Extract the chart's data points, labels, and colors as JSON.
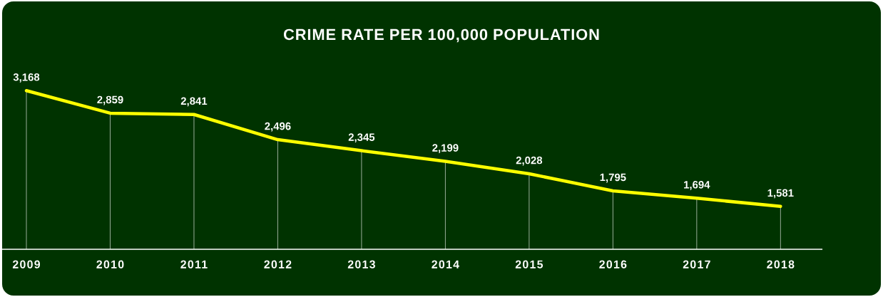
{
  "chart_data": {
    "type": "line",
    "title": "CRIME RATE PER 100,000 POPULATION",
    "categories": [
      "2009",
      "2010",
      "2011",
      "2012",
      "2013",
      "2014",
      "2015",
      "2016",
      "2017",
      "2018"
    ],
    "values": [
      3168,
      2859,
      2841,
      2496,
      2345,
      2199,
      2028,
      1795,
      1694,
      1581
    ],
    "value_labels": [
      "3,168",
      "2,859",
      "2,841",
      "2,496",
      "2,345",
      "2,199",
      "2,028",
      "1,795",
      "1,694",
      "1,581"
    ],
    "color": "#ffff00",
    "marker": "none",
    "line_style": "solid",
    "grid": "x"
  }
}
